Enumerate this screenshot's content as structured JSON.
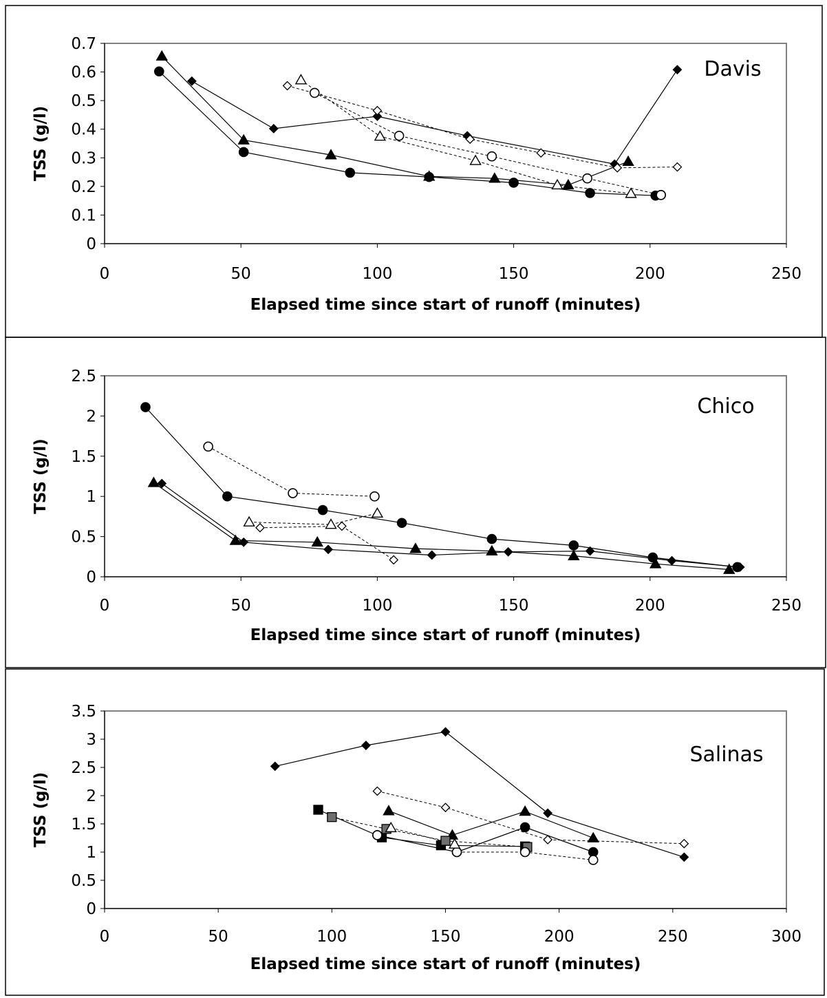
{
  "chart_data": [
    {
      "type": "scatter",
      "annotation": "Davis",
      "xlabel": "Elapsed time since start of runoff (minutes)",
      "ylabel": "TSS (g/l)",
      "xlim": [
        0,
        250
      ],
      "ylim": [
        0,
        0.7
      ],
      "xticks": [
        "0",
        "50",
        "100",
        "150",
        "200",
        "250"
      ],
      "yticks": [
        "0",
        "0.1",
        "0.2",
        "0.3",
        "0.4",
        "0.5",
        "0.6",
        "0.7"
      ],
      "grid": false,
      "legend": "none",
      "series": [
        {
          "marker": "triangle",
          "fill": "filled",
          "line": "solid",
          "x": [
            21,
            51,
            83,
            119,
            143,
            170,
            192
          ],
          "y": [
            0.655,
            0.362,
            0.31,
            0.235,
            0.228,
            0.205,
            0.287
          ]
        },
        {
          "marker": "diamond",
          "fill": "filled",
          "line": "solid",
          "x": [
            32,
            62,
            100,
            133,
            187,
            210
          ],
          "y": [
            0.568,
            0.402,
            0.445,
            0.377,
            0.278,
            0.608
          ]
        },
        {
          "marker": "circle",
          "fill": "filled",
          "line": "solid",
          "x": [
            20,
            51,
            90,
            119,
            150,
            178,
            202,
            204
          ],
          "y": [
            0.602,
            0.32,
            0.248,
            0.233,
            0.213,
            0.177,
            0.168,
            0.17
          ]
        },
        {
          "marker": "diamond",
          "fill": "open",
          "line": "dashed",
          "x": [
            67,
            100,
            134,
            160,
            188,
            210
          ],
          "y": [
            0.552,
            0.465,
            0.365,
            0.317,
            0.265,
            0.268
          ]
        },
        {
          "marker": "triangle",
          "fill": "open",
          "line": "dashed",
          "x": [
            72,
            101,
            136,
            166,
            193
          ],
          "y": [
            0.572,
            0.375,
            0.29,
            0.205,
            0.175
          ]
        },
        {
          "marker": "circle",
          "fill": "open",
          "line": "dashed",
          "x": [
            77,
            108,
            142,
            177,
            204
          ],
          "y": [
            0.527,
            0.377,
            0.305,
            0.228,
            0.17
          ]
        }
      ]
    },
    {
      "type": "scatter",
      "annotation": "Chico",
      "xlabel": "Elapsed time since start of runoff (minutes)",
      "ylabel": "TSS (g/l)",
      "xlim": [
        0,
        250
      ],
      "ylim": [
        0,
        2.5
      ],
      "xticks": [
        "0",
        "50",
        "100",
        "150",
        "200",
        "250"
      ],
      "yticks": [
        "0",
        "0.5",
        "1",
        "1.5",
        "2",
        "2.5"
      ],
      "grid": false,
      "legend": "none",
      "series": [
        {
          "marker": "circle",
          "fill": "filled",
          "line": "solid",
          "x": [
            15,
            45,
            80,
            109,
            142,
            172,
            201,
            232
          ],
          "y": [
            2.11,
            1.0,
            0.83,
            0.67,
            0.47,
            0.39,
            0.24,
            0.12
          ]
        },
        {
          "marker": "triangle",
          "fill": "filled",
          "line": "solid",
          "x": [
            18,
            48,
            78,
            114,
            142,
            172,
            202,
            229
          ],
          "y": [
            1.17,
            0.45,
            0.43,
            0.35,
            0.32,
            0.26,
            0.16,
            0.09
          ]
        },
        {
          "marker": "diamond",
          "fill": "filled",
          "line": "solid",
          "x": [
            21,
            51,
            82,
            120,
            148,
            178,
            208,
            233
          ],
          "y": [
            1.16,
            0.43,
            0.34,
            0.27,
            0.31,
            0.32,
            0.2,
            0.12
          ]
        },
        {
          "marker": "circle",
          "fill": "open",
          "line": "dashed",
          "x": [
            38,
            69,
            99
          ],
          "y": [
            1.62,
            1.04,
            1.0
          ]
        },
        {
          "marker": "triangle",
          "fill": "open",
          "line": "dashed",
          "x": [
            53,
            83,
            100
          ],
          "y": [
            0.68,
            0.65,
            0.79
          ]
        },
        {
          "marker": "diamond",
          "fill": "open",
          "line": "dashed",
          "x": [
            57,
            87,
            106
          ],
          "y": [
            0.61,
            0.63,
            0.21
          ]
        }
      ]
    },
    {
      "type": "scatter",
      "annotation": "Salinas",
      "xlabel": "Elapsed time since start of runoff (minutes)",
      "ylabel": "TSS (g/l)",
      "xlim": [
        0,
        300
      ],
      "ylim": [
        0,
        3.5
      ],
      "xticks": [
        "0",
        "50",
        "100",
        "150",
        "200",
        "250",
        "300"
      ],
      "yticks": [
        "0",
        "0.5",
        "1",
        "1.5",
        "2",
        "2.5",
        "3",
        "3.5"
      ],
      "grid": false,
      "legend": "none",
      "series": [
        {
          "marker": "diamond",
          "fill": "filled",
          "line": "solid",
          "x": [
            75,
            115,
            150,
            195,
            255
          ],
          "y": [
            2.52,
            2.89,
            3.13,
            1.69,
            0.91
          ]
        },
        {
          "marker": "diamond",
          "fill": "open",
          "line": "dashed",
          "x": [
            120,
            150,
            195,
            255
          ],
          "y": [
            2.08,
            1.79,
            1.22,
            1.15
          ]
        },
        {
          "marker": "triangle",
          "fill": "filled",
          "line": "solid",
          "x": [
            125,
            153,
            185,
            215
          ],
          "y": [
            1.73,
            1.3,
            1.72,
            1.25
          ]
        },
        {
          "marker": "circle",
          "fill": "filled",
          "line": "solid",
          "x": [
            120,
            155,
            185,
            215
          ],
          "y": [
            1.3,
            1.0,
            1.44,
            1.0
          ]
        },
        {
          "marker": "square",
          "fill": "filled",
          "line": "solid",
          "x": [
            94,
            122,
            148,
            185
          ],
          "y": [
            1.75,
            1.26,
            1.12,
            1.1
          ]
        },
        {
          "marker": "square",
          "fill": "gray",
          "line": "dashed",
          "x": [
            100,
            124,
            150,
            186
          ],
          "y": [
            1.62,
            1.41,
            1.2,
            1.09
          ]
        },
        {
          "marker": "circle",
          "fill": "open",
          "line": "dashed",
          "x": [
            120,
            155,
            185,
            215
          ],
          "y": [
            1.3,
            1.0,
            1.0,
            0.86
          ]
        },
        {
          "marker": "triangle",
          "fill": "open",
          "line": "dashed",
          "x": [
            126,
            154
          ],
          "y": [
            1.43,
            1.14
          ]
        }
      ]
    }
  ]
}
